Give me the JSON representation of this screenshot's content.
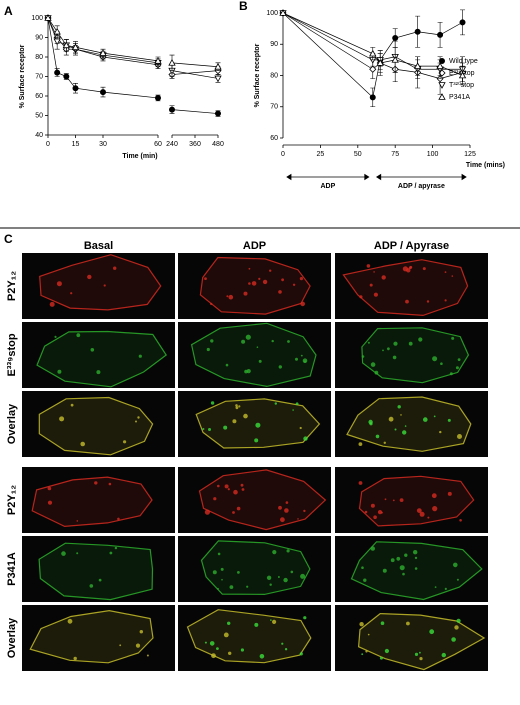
{
  "chart_data": [
    {
      "type": "line",
      "panel": "A",
      "ylabel": "% Surface receptor",
      "xlabel": "Time (min)",
      "x": [
        0,
        5,
        10,
        15,
        30,
        60,
        240,
        480
      ],
      "xsegments": [
        [
          0,
          60
        ],
        [
          240,
          480
        ]
      ],
      "xticks": [
        0,
        15,
        30,
        60,
        240,
        360,
        480
      ],
      "ylim": [
        40,
        100
      ],
      "yticks": [
        40,
        50,
        60,
        70,
        80,
        90,
        100
      ],
      "series": [
        {
          "name": "Wild type",
          "color": "#000000",
          "marker": "circle-filled",
          "values": [
            100,
            72,
            70,
            64,
            62,
            59,
            53,
            51
          ],
          "errors": [
            0,
            2,
            1.5,
            2.5,
            2.5,
            1.5,
            2,
            1.5
          ]
        },
        {
          "name": "E³³⁹stop",
          "color": "#000000",
          "marker": "diamond",
          "values": [
            100,
            90,
            84,
            84,
            80,
            76,
            71,
            73
          ],
          "errors": [
            0,
            3,
            3,
            2,
            2,
            2,
            2,
            2
          ]
        },
        {
          "name": "T³²⁰stop",
          "color": "#000000",
          "marker": "triangle-down",
          "values": [
            100,
            88,
            86,
            84,
            81,
            77,
            73,
            69
          ],
          "errors": [
            0,
            4,
            3,
            3,
            2,
            2,
            3,
            2
          ]
        },
        {
          "name": "P341A",
          "color": "#000000",
          "marker": "triangle-up",
          "values": [
            100,
            93,
            86,
            85,
            82,
            78,
            77,
            75
          ],
          "errors": [
            0,
            3,
            3,
            3,
            2,
            2,
            4,
            2
          ]
        }
      ]
    },
    {
      "type": "line",
      "panel": "B",
      "ylabel": "% Surface receptor",
      "xlabel": "Time (mins)",
      "x": [
        0,
        60,
        65,
        75,
        90,
        105,
        120
      ],
      "xlim": [
        0,
        125
      ],
      "xticks": [
        0,
        25,
        50,
        75,
        100,
        125
      ],
      "ylim": [
        60,
        100
      ],
      "yticks": [
        60,
        70,
        80,
        90,
        100
      ],
      "legend": "right",
      "annotations": [
        {
          "text": "ADP",
          "x": [
            0,
            60
          ]
        },
        {
          "text": "ADP / apyrase",
          "x": [
            60,
            125
          ]
        }
      ],
      "series": [
        {
          "name": "Wild type",
          "color": "#000000",
          "marker": "circle-filled",
          "values": [
            100,
            73,
            85,
            92,
            94,
            93,
            97
          ],
          "errors": [
            0,
            3,
            2,
            3,
            5,
            4,
            4
          ]
        },
        {
          "name": "E³³⁹stop",
          "color": "#000000",
          "marker": "diamond",
          "values": [
            100,
            82,
            84,
            82,
            81,
            79,
            81
          ],
          "errors": [
            0,
            3,
            4,
            4,
            5,
            5,
            3
          ]
        },
        {
          "name": "T³²⁰stop",
          "color": "#000000",
          "marker": "triangle-down",
          "values": [
            100,
            85,
            85,
            86,
            82,
            82,
            82
          ],
          "errors": [
            0,
            2,
            3,
            5,
            3,
            3,
            4
          ]
        },
        {
          "name": "P341A",
          "color": "#000000",
          "marker": "triangle-up",
          "values": [
            100,
            87,
            84,
            85,
            83,
            83,
            80
          ],
          "errors": [
            0,
            2,
            3,
            4,
            3,
            3,
            3
          ]
        }
      ]
    }
  ],
  "panel_c": {
    "label": "C",
    "columns": [
      "Basal",
      "ADP",
      "ADP / Apyrase"
    ],
    "rows": [
      "P2Y₁₂",
      "E³³⁹stop",
      "Overlay",
      "P2Y₁₂",
      "P341A",
      "Overlay"
    ]
  }
}
